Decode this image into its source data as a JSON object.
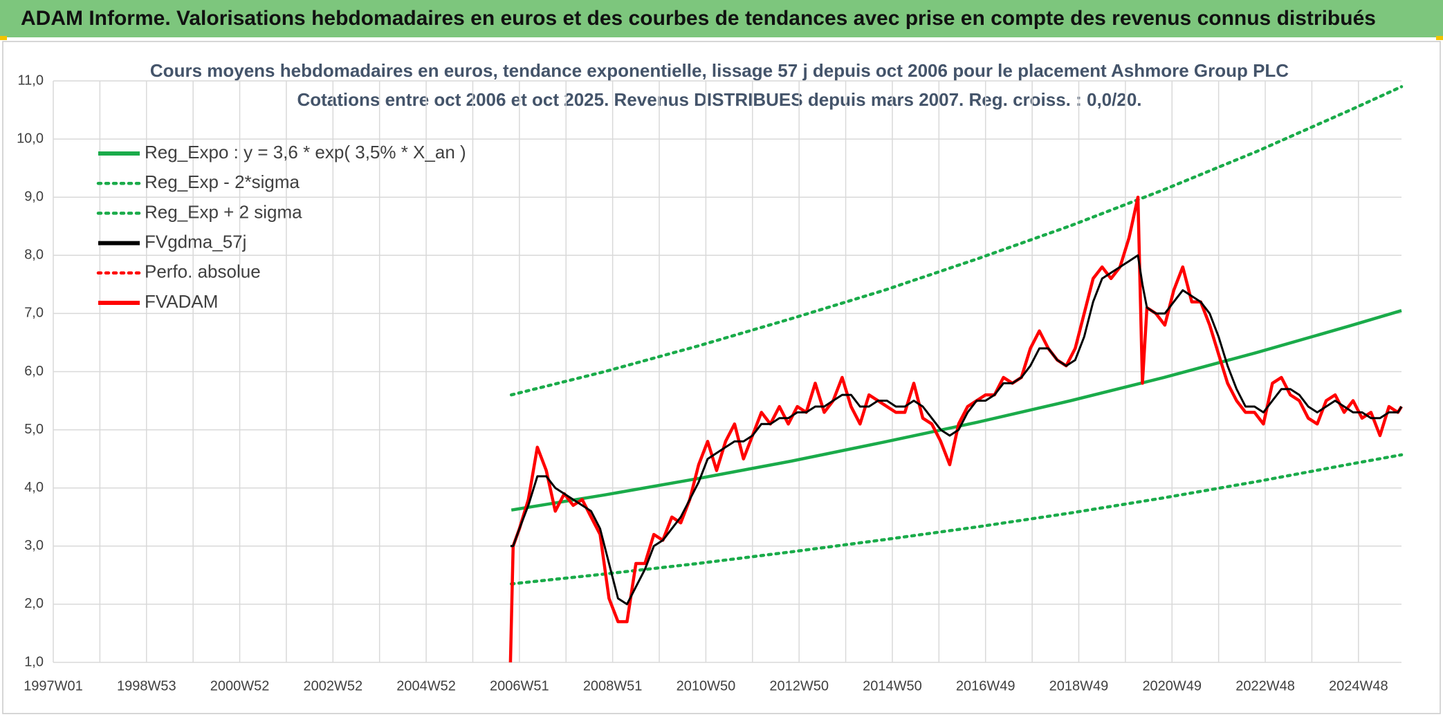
{
  "header": {
    "title": "ADAM Informe. Valorisations hebdomadaires en euros et des courbes de tendances avec prise en compte des revenus connus distribués"
  },
  "chart_data": {
    "type": "line",
    "title": "Cours moyens hebdomadaires en euros, tendance exponentielle, lissage 57 j depuis oct 2006 pour le placement Ashmore Group PLC",
    "subtitle": "Cotations entre oct 2006 et oct 2025. Revenus DISTRIBUES depuis mars 2007. Reg. croiss. : 0,0/20.",
    "xlim": [
      0,
      1504
    ],
    "xticks": [
      {
        "value": 0,
        "label": "1997W01"
      },
      {
        "value": 104,
        "label": "1998W53"
      },
      {
        "value": 208,
        "label": "2000W52"
      },
      {
        "value": 312,
        "label": "2002W52"
      },
      {
        "value": 416,
        "label": "2004W52"
      },
      {
        "value": 520,
        "label": "2006W51"
      },
      {
        "value": 624,
        "label": "2008W51"
      },
      {
        "value": 728,
        "label": "2010W50"
      },
      {
        "value": 832,
        "label": "2012W50"
      },
      {
        "value": 936,
        "label": "2014W50"
      },
      {
        "value": 1040,
        "label": "2016W49"
      },
      {
        "value": 1144,
        "label": "2018W49"
      },
      {
        "value": 1248,
        "label": "2020W49"
      },
      {
        "value": 1352,
        "label": "2022W48"
      },
      {
        "value": 1456,
        "label": "2024W48"
      }
    ],
    "xminorticks": [
      52,
      156,
      260,
      364,
      468,
      572,
      676,
      780,
      884,
      988,
      1092,
      1196,
      1300,
      1404
    ],
    "ylim": [
      1,
      11
    ],
    "yticks": [
      {
        "value": 1,
        "label": "1,0"
      },
      {
        "value": 2,
        "label": "2,0"
      },
      {
        "value": 3,
        "label": "3,0"
      },
      {
        "value": 4,
        "label": "4,0"
      },
      {
        "value": 5,
        "label": "5,0"
      },
      {
        "value": 6,
        "label": "6,0"
      },
      {
        "value": 7,
        "label": "7,0"
      },
      {
        "value": 8,
        "label": "8,0"
      },
      {
        "value": 9,
        "label": "9,0"
      },
      {
        "value": 10,
        "label": "10,0"
      },
      {
        "value": 11,
        "label": "11,0"
      }
    ],
    "grid": true,
    "legend": "top-left",
    "series": [
      {
        "name": "Reg_Expo : y = 3,6 * exp( 3,5% *  X_an )",
        "color": "#1aab4a",
        "linestyle": "solid",
        "x": [
          511,
          615,
          719,
          823,
          927,
          1031,
          1135,
          1239,
          1343,
          1447,
          1504
        ],
        "values": [
          3.62,
          3.88,
          4.16,
          4.46,
          4.79,
          5.13,
          5.5,
          5.9,
          6.33,
          6.79,
          7.05
        ]
      },
      {
        "name": "Reg_Exp - 2*sigma",
        "color": "#1aab4a",
        "linestyle": "dotted",
        "x": [
          511,
          615,
          719,
          823,
          927,
          1031,
          1135,
          1239,
          1343,
          1447,
          1504
        ],
        "values": [
          2.35,
          2.52,
          2.7,
          2.9,
          3.11,
          3.33,
          3.57,
          3.83,
          4.11,
          4.41,
          4.57
        ]
      },
      {
        "name": "Reg_Exp + 2 sigma",
        "color": "#1aab4a",
        "linestyle": "dotted",
        "x": [
          511,
          615,
          719,
          823,
          927,
          1031,
          1135,
          1239,
          1343,
          1447,
          1504
        ],
        "values": [
          5.6,
          6.0,
          6.44,
          6.91,
          7.4,
          7.94,
          8.51,
          9.13,
          9.79,
          10.5,
          10.9
        ]
      },
      {
        "name": "FVgdma_57j",
        "color": "#000000",
        "linestyle": "solid",
        "x": [
          510,
          513,
          520,
          530,
          540,
          550,
          560,
          570,
          580,
          590,
          600,
          610,
          620,
          630,
          640,
          650,
          660,
          670,
          680,
          690,
          700,
          710,
          720,
          730,
          740,
          750,
          760,
          770,
          780,
          790,
          800,
          810,
          820,
          830,
          840,
          850,
          860,
          870,
          880,
          890,
          900,
          910,
          920,
          930,
          940,
          950,
          960,
          970,
          980,
          990,
          1000,
          1010,
          1020,
          1030,
          1040,
          1050,
          1060,
          1070,
          1080,
          1090,
          1100,
          1110,
          1120,
          1130,
          1140,
          1150,
          1160,
          1170,
          1180,
          1190,
          1200,
          1210,
          1215,
          1220,
          1230,
          1240,
          1250,
          1260,
          1270,
          1280,
          1290,
          1300,
          1310,
          1320,
          1330,
          1340,
          1350,
          1360,
          1370,
          1380,
          1390,
          1400,
          1410,
          1420,
          1430,
          1440,
          1450,
          1460,
          1470,
          1480,
          1490,
          1500,
          1504
        ],
        "values": [
          3.0,
          3.0,
          3.3,
          3.7,
          4.2,
          4.2,
          4.0,
          3.9,
          3.8,
          3.7,
          3.6,
          3.3,
          2.7,
          2.1,
          2.0,
          2.3,
          2.6,
          3.0,
          3.1,
          3.3,
          3.5,
          3.8,
          4.1,
          4.5,
          4.6,
          4.7,
          4.8,
          4.8,
          4.9,
          5.1,
          5.1,
          5.2,
          5.2,
          5.3,
          5.3,
          5.4,
          5.4,
          5.5,
          5.6,
          5.6,
          5.4,
          5.4,
          5.5,
          5.5,
          5.4,
          5.4,
          5.5,
          5.4,
          5.2,
          5.0,
          4.9,
          5.0,
          5.3,
          5.5,
          5.5,
          5.6,
          5.8,
          5.8,
          5.9,
          6.1,
          6.4,
          6.4,
          6.2,
          6.1,
          6.2,
          6.6,
          7.2,
          7.6,
          7.7,
          7.8,
          7.9,
          8.0,
          7.5,
          7.1,
          7.0,
          7.0,
          7.2,
          7.4,
          7.3,
          7.2,
          7.0,
          6.6,
          6.1,
          5.7,
          5.4,
          5.4,
          5.3,
          5.5,
          5.7,
          5.7,
          5.6,
          5.4,
          5.3,
          5.4,
          5.5,
          5.4,
          5.3,
          5.3,
          5.2,
          5.2,
          5.3,
          5.3,
          5.4
        ]
      },
      {
        "name": "Perfo. absolue",
        "color": "#ff0000",
        "linestyle": "dotted",
        "x": [],
        "values": []
      },
      {
        "name": "FVADAM",
        "color": "#ff0000",
        "linestyle": "solid",
        "x": [
          510,
          513,
          520,
          530,
          540,
          550,
          560,
          570,
          580,
          590,
          600,
          610,
          620,
          630,
          640,
          650,
          660,
          670,
          680,
          690,
          700,
          710,
          720,
          730,
          740,
          750,
          760,
          770,
          780,
          790,
          800,
          810,
          820,
          830,
          840,
          850,
          860,
          870,
          880,
          890,
          900,
          910,
          920,
          930,
          940,
          950,
          960,
          970,
          980,
          990,
          1000,
          1010,
          1020,
          1030,
          1040,
          1050,
          1060,
          1070,
          1080,
          1090,
          1100,
          1110,
          1120,
          1130,
          1140,
          1150,
          1160,
          1170,
          1180,
          1190,
          1200,
          1210,
          1215,
          1220,
          1230,
          1240,
          1250,
          1260,
          1270,
          1280,
          1290,
          1300,
          1310,
          1320,
          1330,
          1340,
          1350,
          1360,
          1370,
          1380,
          1390,
          1400,
          1410,
          1420,
          1430,
          1440,
          1450,
          1460,
          1470,
          1480,
          1490,
          1500,
          1504
        ],
        "values": [
          1.0,
          3.0,
          3.3,
          3.8,
          4.7,
          4.3,
          3.6,
          3.9,
          3.7,
          3.8,
          3.5,
          3.2,
          2.1,
          1.7,
          1.7,
          2.7,
          2.7,
          3.2,
          3.1,
          3.5,
          3.4,
          3.8,
          4.4,
          4.8,
          4.3,
          4.8,
          5.1,
          4.5,
          4.9,
          5.3,
          5.1,
          5.4,
          5.1,
          5.4,
          5.3,
          5.8,
          5.3,
          5.5,
          5.9,
          5.4,
          5.1,
          5.6,
          5.5,
          5.4,
          5.3,
          5.3,
          5.8,
          5.2,
          5.1,
          4.8,
          4.4,
          5.1,
          5.4,
          5.5,
          5.6,
          5.6,
          5.9,
          5.8,
          5.9,
          6.4,
          6.7,
          6.4,
          6.2,
          6.1,
          6.4,
          7.0,
          7.6,
          7.8,
          7.6,
          7.8,
          8.3,
          9.0,
          5.8,
          7.1,
          7.0,
          6.8,
          7.4,
          7.8,
          7.2,
          7.2,
          6.8,
          6.3,
          5.8,
          5.5,
          5.3,
          5.3,
          5.1,
          5.8,
          5.9,
          5.6,
          5.5,
          5.2,
          5.1,
          5.5,
          5.6,
          5.3,
          5.5,
          5.2,
          5.3,
          4.9,
          5.4,
          5.3,
          5.4
        ]
      }
    ]
  }
}
